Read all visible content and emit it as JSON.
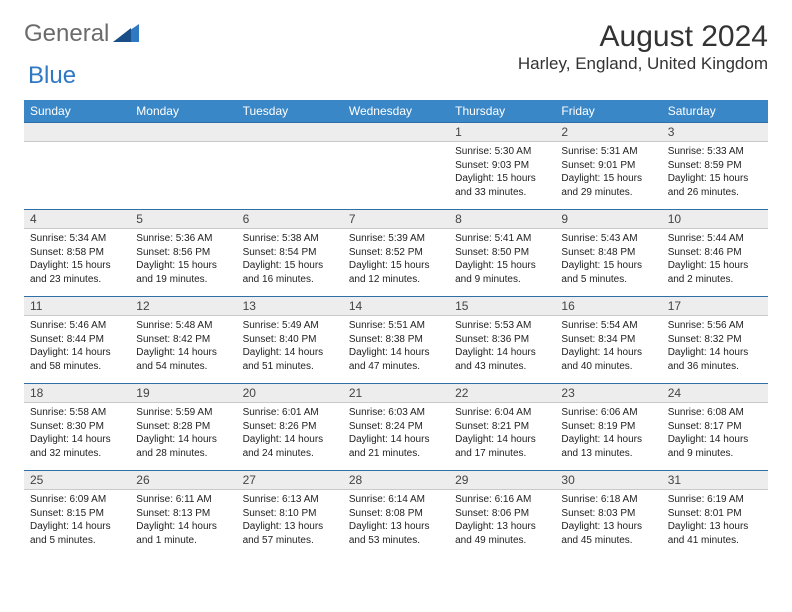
{
  "brand": {
    "word1": "General",
    "word2": "Blue"
  },
  "title": "August 2024",
  "location": "Harley, England, United Kingdom",
  "day_names": [
    "Sunday",
    "Monday",
    "Tuesday",
    "Wednesday",
    "Thursday",
    "Friday",
    "Saturday"
  ],
  "colors": {
    "header_bg": "#3a87c7",
    "header_text": "#ffffff",
    "daynum_bg": "#ededed",
    "daynum_border_top": "#2f6fa8",
    "brand_gray": "#6b6b6b",
    "brand_blue": "#2f78c2"
  },
  "typography": {
    "title_pt": 30,
    "location_pt": 17,
    "th_pt": 12,
    "daynum_pt": 12,
    "body_pt": 10
  },
  "layout": {
    "cols": 7,
    "rows": 5,
    "first_weekday_index": 4
  },
  "days": [
    {
      "n": 1,
      "sr": "5:30 AM",
      "ss": "9:03 PM",
      "dl": "15 hours and 33 minutes."
    },
    {
      "n": 2,
      "sr": "5:31 AM",
      "ss": "9:01 PM",
      "dl": "15 hours and 29 minutes."
    },
    {
      "n": 3,
      "sr": "5:33 AM",
      "ss": "8:59 PM",
      "dl": "15 hours and 26 minutes."
    },
    {
      "n": 4,
      "sr": "5:34 AM",
      "ss": "8:58 PM",
      "dl": "15 hours and 23 minutes."
    },
    {
      "n": 5,
      "sr": "5:36 AM",
      "ss": "8:56 PM",
      "dl": "15 hours and 19 minutes."
    },
    {
      "n": 6,
      "sr": "5:38 AM",
      "ss": "8:54 PM",
      "dl": "15 hours and 16 minutes."
    },
    {
      "n": 7,
      "sr": "5:39 AM",
      "ss": "8:52 PM",
      "dl": "15 hours and 12 minutes."
    },
    {
      "n": 8,
      "sr": "5:41 AM",
      "ss": "8:50 PM",
      "dl": "15 hours and 9 minutes."
    },
    {
      "n": 9,
      "sr": "5:43 AM",
      "ss": "8:48 PM",
      "dl": "15 hours and 5 minutes."
    },
    {
      "n": 10,
      "sr": "5:44 AM",
      "ss": "8:46 PM",
      "dl": "15 hours and 2 minutes."
    },
    {
      "n": 11,
      "sr": "5:46 AM",
      "ss": "8:44 PM",
      "dl": "14 hours and 58 minutes."
    },
    {
      "n": 12,
      "sr": "5:48 AM",
      "ss": "8:42 PM",
      "dl": "14 hours and 54 minutes."
    },
    {
      "n": 13,
      "sr": "5:49 AM",
      "ss": "8:40 PM",
      "dl": "14 hours and 51 minutes."
    },
    {
      "n": 14,
      "sr": "5:51 AM",
      "ss": "8:38 PM",
      "dl": "14 hours and 47 minutes."
    },
    {
      "n": 15,
      "sr": "5:53 AM",
      "ss": "8:36 PM",
      "dl": "14 hours and 43 minutes."
    },
    {
      "n": 16,
      "sr": "5:54 AM",
      "ss": "8:34 PM",
      "dl": "14 hours and 40 minutes."
    },
    {
      "n": 17,
      "sr": "5:56 AM",
      "ss": "8:32 PM",
      "dl": "14 hours and 36 minutes."
    },
    {
      "n": 18,
      "sr": "5:58 AM",
      "ss": "8:30 PM",
      "dl": "14 hours and 32 minutes."
    },
    {
      "n": 19,
      "sr": "5:59 AM",
      "ss": "8:28 PM",
      "dl": "14 hours and 28 minutes."
    },
    {
      "n": 20,
      "sr": "6:01 AM",
      "ss": "8:26 PM",
      "dl": "14 hours and 24 minutes."
    },
    {
      "n": 21,
      "sr": "6:03 AM",
      "ss": "8:24 PM",
      "dl": "14 hours and 21 minutes."
    },
    {
      "n": 22,
      "sr": "6:04 AM",
      "ss": "8:21 PM",
      "dl": "14 hours and 17 minutes."
    },
    {
      "n": 23,
      "sr": "6:06 AM",
      "ss": "8:19 PM",
      "dl": "14 hours and 13 minutes."
    },
    {
      "n": 24,
      "sr": "6:08 AM",
      "ss": "8:17 PM",
      "dl": "14 hours and 9 minutes."
    },
    {
      "n": 25,
      "sr": "6:09 AM",
      "ss": "8:15 PM",
      "dl": "14 hours and 5 minutes."
    },
    {
      "n": 26,
      "sr": "6:11 AM",
      "ss": "8:13 PM",
      "dl": "14 hours and 1 minute."
    },
    {
      "n": 27,
      "sr": "6:13 AM",
      "ss": "8:10 PM",
      "dl": "13 hours and 57 minutes."
    },
    {
      "n": 28,
      "sr": "6:14 AM",
      "ss": "8:08 PM",
      "dl": "13 hours and 53 minutes."
    },
    {
      "n": 29,
      "sr": "6:16 AM",
      "ss": "8:06 PM",
      "dl": "13 hours and 49 minutes."
    },
    {
      "n": 30,
      "sr": "6:18 AM",
      "ss": "8:03 PM",
      "dl": "13 hours and 45 minutes."
    },
    {
      "n": 31,
      "sr": "6:19 AM",
      "ss": "8:01 PM",
      "dl": "13 hours and 41 minutes."
    }
  ]
}
